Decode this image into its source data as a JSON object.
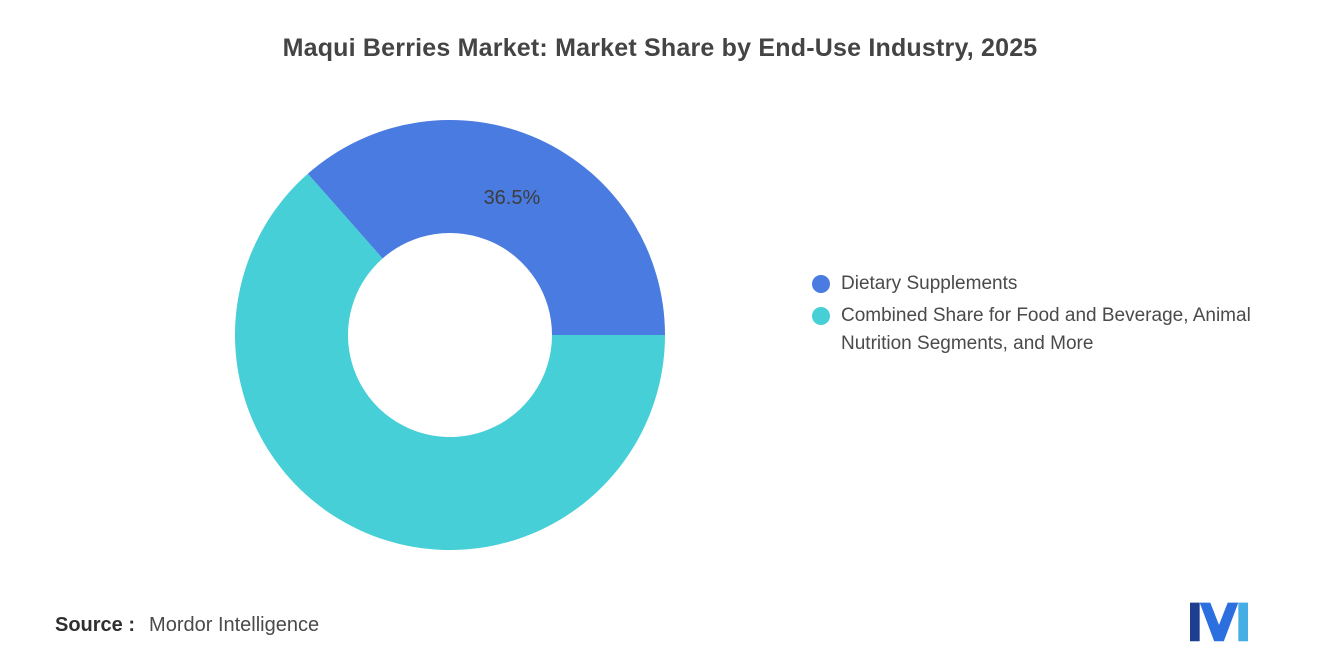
{
  "title": "Maqui Berries Market: Market Share by End-Use Industry, 2025",
  "chart_data": {
    "type": "pie",
    "subtype": "donut",
    "title": "Maqui Berries Market: Market Share by End-Use Industry, 2025",
    "start_angle_deg": -41.4,
    "legend_position": "right",
    "slices": [
      {
        "id": "dietary-supplements",
        "label": "Dietary Supplements",
        "value": 36.5,
        "data_label": "36.5%",
        "color": "#4A7BE1"
      },
      {
        "id": "combined-share-food-beverage-animal-nutrition",
        "label": "Combined Share for Food and Beverage, Animal Nutrition Segments, and More",
        "value": 63.5,
        "data_label": "",
        "color": "#46CFD6"
      }
    ]
  },
  "source": {
    "label": "Source :",
    "value": "Mordor Intelligence"
  },
  "logo": {
    "icon": "mordor-intelligence-logo",
    "colors": [
      "#1E3F8F",
      "#2C6FDE",
      "#45AEE5"
    ]
  }
}
